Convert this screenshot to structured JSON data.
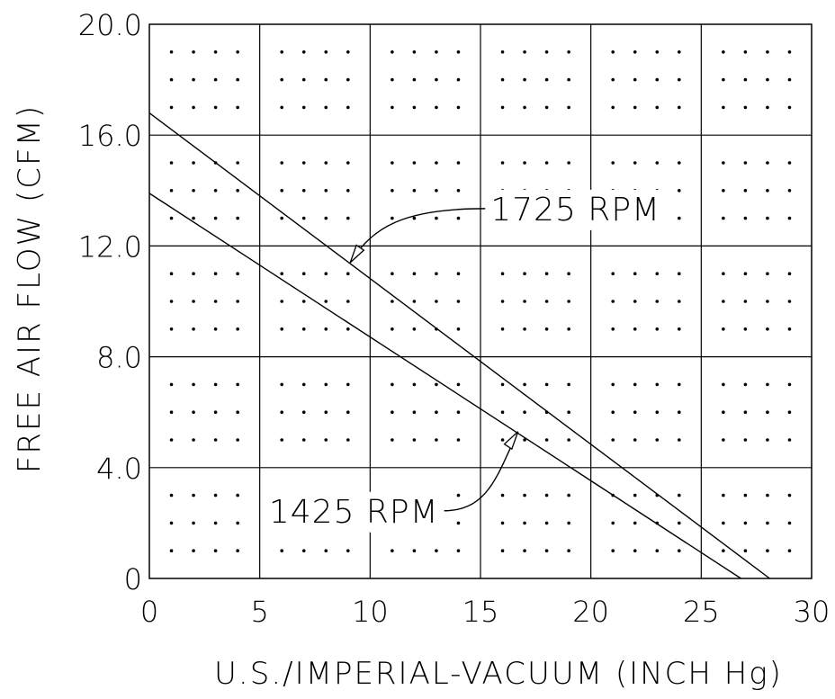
{
  "chart_data": {
    "type": "line",
    "title": "",
    "xlabel": "U.S./IMPERIAL-VACUUM (INCH Hg)",
    "ylabel": "FREE AIR FLOW (CFM)",
    "xlim": [
      0,
      30
    ],
    "ylim": [
      0,
      20
    ],
    "x_ticks": [
      0,
      5,
      10,
      15,
      20,
      25,
      30
    ],
    "x_tick_labels": [
      "0",
      "5",
      "10",
      "15",
      "20",
      "25",
      "30"
    ],
    "y_ticks": [
      0,
      4,
      8,
      12,
      16,
      20
    ],
    "y_tick_labels": [
      "0",
      "4.0",
      "8.0",
      "12.0",
      "16.0",
      "20.0"
    ],
    "grid": true,
    "dot_pattern": true,
    "series": [
      {
        "name": "1725 RPM",
        "x": [
          0,
          28.1
        ],
        "y": [
          16.8,
          0
        ],
        "callout_point": [
          9.1,
          11.4
        ],
        "callout_label_position": "upper-right"
      },
      {
        "name": "1425 RPM",
        "x": [
          0,
          26.8
        ],
        "y": [
          13.9,
          0
        ],
        "callout_point": [
          16.7,
          5.3
        ],
        "callout_label_position": "lower-left"
      }
    ],
    "colors": {
      "line": "#000000",
      "background": "#ffffff"
    }
  }
}
